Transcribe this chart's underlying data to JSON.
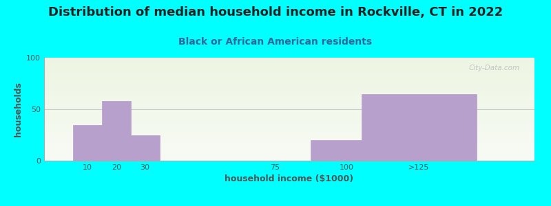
{
  "title": "Distribution of median household income in Rockville, CT in 2022",
  "subtitle": "Black or African American residents",
  "xlabel": "household income ($1000)",
  "ylabel": "households",
  "background_color": "#00FFFF",
  "plot_bg_gradient_top": "#edf5e2",
  "plot_bg_gradient_bottom": "#f8fbf5",
  "bar_color": "#b8a0cc",
  "bar_edge_color": "#b8a0cc",
  "categories": [
    "10",
    "20",
    "30",
    "75",
    "100",
    ">125"
  ],
  "x_positions": [
    10,
    20,
    30,
    75,
    100,
    125
  ],
  "bar_widths": [
    10,
    10,
    10,
    0,
    25,
    40
  ],
  "values": [
    35,
    58,
    25,
    0,
    20,
    65
  ],
  "ylim": [
    0,
    100
  ],
  "yticks": [
    0,
    50,
    100
  ],
  "title_fontsize": 13,
  "subtitle_fontsize": 10,
  "axis_label_fontsize": 9,
  "tick_fontsize": 8,
  "title_color": "#222222",
  "subtitle_color": "#336699",
  "axis_label_color": "#555555",
  "tick_color": "#555555",
  "watermark_text": "City-Data.com",
  "watermark_color": "#bbbbbb",
  "gridline_color": "#cccccc",
  "spine_color": "#aaaaaa"
}
